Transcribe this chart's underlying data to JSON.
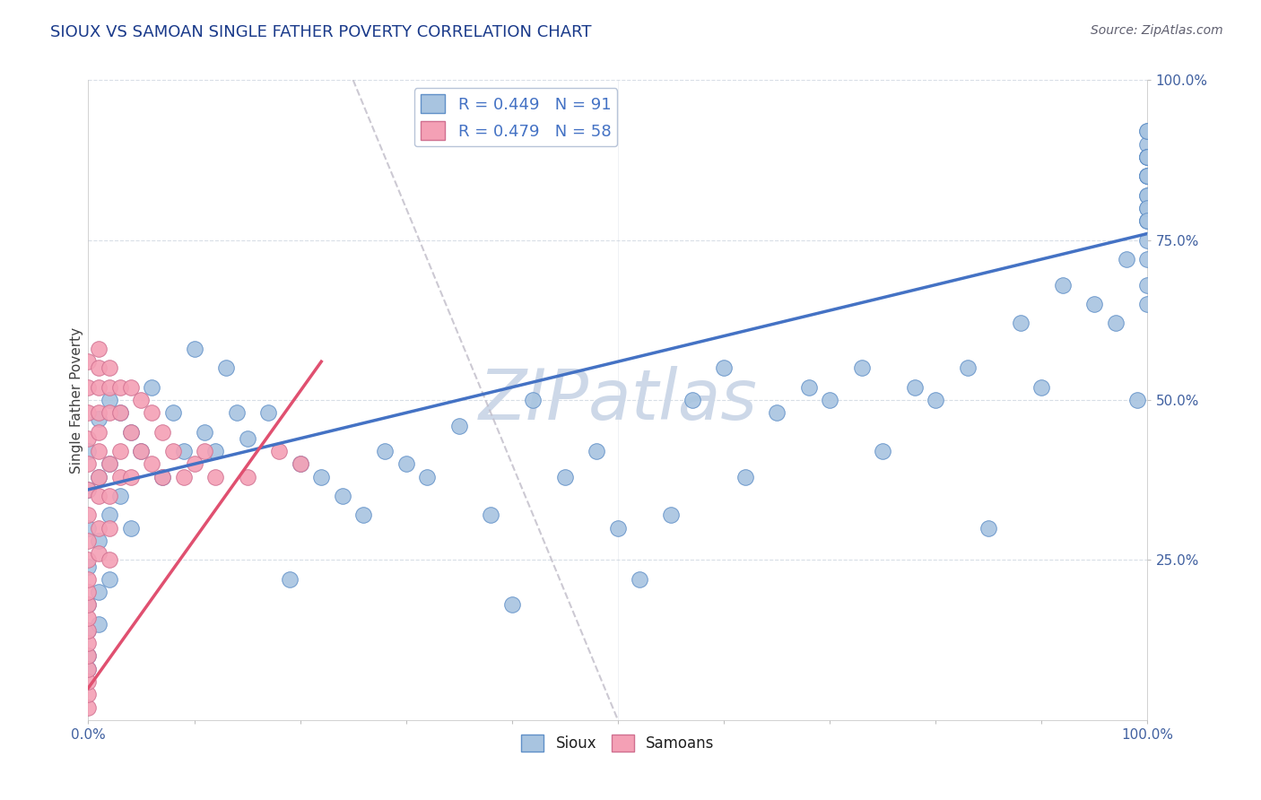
{
  "title": "SIOUX VS SAMOAN SINGLE FATHER POVERTY CORRELATION CHART",
  "source": "Source: ZipAtlas.com",
  "ylabel": "Single Father Poverty",
  "xlim": [
    0,
    1
  ],
  "ylim": [
    0,
    1
  ],
  "ytick_positions": [
    0.25,
    0.5,
    0.75,
    1.0
  ],
  "yticklabels": [
    "25.0%",
    "50.0%",
    "75.0%",
    "100.0%"
  ],
  "R_sioux": 0.449,
  "N_sioux": 91,
  "R_samoan": 0.479,
  "N_samoan": 58,
  "sioux_color": "#a8c4e0",
  "samoan_color": "#f4a0b5",
  "sioux_edge_color": "#6090c8",
  "samoan_edge_color": "#d07090",
  "sioux_line_color": "#4472c4",
  "samoan_line_color": "#e05070",
  "watermark": "ZIPatlas",
  "watermark_color": "#cdd8e8",
  "title_color": "#1a3a8a",
  "source_color": "#606070",
  "tick_color": "#4060a0",
  "ylabel_color": "#404040",
  "grid_color": "#c8d0dc",
  "dashed_line_color": "#c0bcc8",
  "sioux_x": [
    0.0,
    0.0,
    0.0,
    0.0,
    0.0,
    0.0,
    0.0,
    0.0,
    0.01,
    0.01,
    0.01,
    0.01,
    0.01,
    0.02,
    0.02,
    0.02,
    0.02,
    0.03,
    0.03,
    0.04,
    0.04,
    0.05,
    0.06,
    0.07,
    0.08,
    0.09,
    0.1,
    0.11,
    0.12,
    0.13,
    0.14,
    0.15,
    0.17,
    0.19,
    0.2,
    0.22,
    0.24,
    0.26,
    0.28,
    0.3,
    0.32,
    0.35,
    0.38,
    0.4,
    0.42,
    0.45,
    0.48,
    0.5,
    0.52,
    0.55,
    0.57,
    0.6,
    0.62,
    0.65,
    0.68,
    0.7,
    0.73,
    0.75,
    0.78,
    0.8,
    0.83,
    0.85,
    0.88,
    0.9,
    0.92,
    0.95,
    0.97,
    0.98,
    0.99,
    1.0,
    1.0,
    1.0,
    1.0,
    1.0,
    1.0,
    1.0,
    1.0,
    1.0,
    1.0,
    1.0,
    1.0,
    1.0,
    1.0,
    1.0,
    1.0,
    1.0,
    1.0,
    1.0,
    1.0,
    1.0,
    1.0
  ],
  "sioux_y": [
    0.36,
    0.42,
    0.3,
    0.24,
    0.18,
    0.14,
    0.1,
    0.08,
    0.47,
    0.38,
    0.28,
    0.2,
    0.15,
    0.5,
    0.4,
    0.32,
    0.22,
    0.48,
    0.35,
    0.45,
    0.3,
    0.42,
    0.52,
    0.38,
    0.48,
    0.42,
    0.58,
    0.45,
    0.42,
    0.55,
    0.48,
    0.44,
    0.48,
    0.22,
    0.4,
    0.38,
    0.35,
    0.32,
    0.42,
    0.4,
    0.38,
    0.46,
    0.32,
    0.18,
    0.5,
    0.38,
    0.42,
    0.3,
    0.22,
    0.32,
    0.5,
    0.55,
    0.38,
    0.48,
    0.52,
    0.5,
    0.55,
    0.42,
    0.52,
    0.5,
    0.55,
    0.3,
    0.62,
    0.52,
    0.68,
    0.65,
    0.62,
    0.72,
    0.5,
    0.85,
    0.9,
    0.88,
    0.82,
    0.78,
    0.85,
    0.92,
    0.88,
    0.8,
    0.75,
    0.82,
    0.85,
    0.92,
    0.88,
    0.78,
    0.72,
    0.68,
    0.65,
    0.8,
    0.85,
    0.88,
    0.78
  ],
  "samoan_x": [
    0.0,
    0.0,
    0.0,
    0.0,
    0.0,
    0.0,
    0.0,
    0.0,
    0.0,
    0.0,
    0.0,
    0.0,
    0.0,
    0.0,
    0.0,
    0.0,
    0.0,
    0.0,
    0.0,
    0.0,
    0.01,
    0.01,
    0.01,
    0.01,
    0.01,
    0.01,
    0.01,
    0.01,
    0.01,
    0.01,
    0.02,
    0.02,
    0.02,
    0.02,
    0.02,
    0.02,
    0.02,
    0.03,
    0.03,
    0.03,
    0.03,
    0.04,
    0.04,
    0.04,
    0.05,
    0.05,
    0.06,
    0.06,
    0.07,
    0.07,
    0.08,
    0.09,
    0.1,
    0.11,
    0.12,
    0.15,
    0.18,
    0.2
  ],
  "samoan_y": [
    0.02,
    0.04,
    0.06,
    0.08,
    0.1,
    0.12,
    0.14,
    0.16,
    0.18,
    0.2,
    0.22,
    0.25,
    0.28,
    0.32,
    0.36,
    0.4,
    0.44,
    0.48,
    0.52,
    0.56,
    0.35,
    0.38,
    0.42,
    0.45,
    0.48,
    0.52,
    0.55,
    0.58,
    0.3,
    0.26,
    0.48,
    0.52,
    0.55,
    0.4,
    0.35,
    0.3,
    0.25,
    0.52,
    0.48,
    0.42,
    0.38,
    0.52,
    0.45,
    0.38,
    0.5,
    0.42,
    0.48,
    0.4,
    0.45,
    0.38,
    0.42,
    0.38,
    0.4,
    0.42,
    0.38,
    0.38,
    0.42,
    0.4
  ],
  "sioux_line_x": [
    0.0,
    1.0
  ],
  "sioux_line_y": [
    0.36,
    0.76
  ],
  "samoan_line_x": [
    0.0,
    0.22
  ],
  "samoan_line_y": [
    0.05,
    0.56
  ]
}
